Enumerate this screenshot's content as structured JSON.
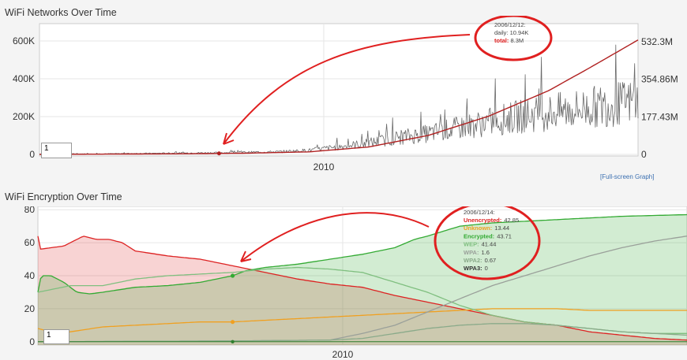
{
  "colors": {
    "network_daily": "#6a6a6a",
    "network_total": "#b02020",
    "unencrypted": "#dd2222",
    "unknown": "#f0a020",
    "encrypted": "#33aa33",
    "wep": "#7fbf7f",
    "wpa": "#9aa09a",
    "wpa2": "#8aaa8a",
    "annotation": "#e02020"
  },
  "chart_data": [
    {
      "type": "line",
      "title": "WiFi Networks Over Time",
      "x_label_center": "2010",
      "left_axis": {
        "ticks": [
          "600K",
          "400K",
          "200K",
          "0"
        ],
        "values": [
          600000,
          400000,
          200000,
          0
        ],
        "ylim": [
          0,
          650000
        ]
      },
      "right_axis": {
        "ticks": [
          "532.3M",
          "354.86M",
          "177.43M",
          "0"
        ],
        "values": [
          532.3,
          354.86,
          177.43,
          0
        ],
        "ylim": [
          0,
          580
        ]
      },
      "series": [
        {
          "name": "daily",
          "axis": "left",
          "anchors": [
            [
              0.0,
              2000
            ],
            [
              0.1,
              3000
            ],
            [
              0.2,
              6000
            ],
            [
              0.3,
              9000
            ],
            [
              0.4,
              14000
            ],
            [
              0.45,
              22000
            ],
            [
              0.5,
              40000
            ],
            [
              0.55,
              60000
            ],
            [
              0.6,
              90000
            ],
            [
              0.65,
              110000
            ],
            [
              0.7,
              140000
            ],
            [
              0.75,
              170000
            ],
            [
              0.8,
              200000
            ],
            [
              0.85,
              220000
            ],
            [
              0.9,
              240000
            ],
            [
              0.95,
              260000
            ],
            [
              1.0,
              280000
            ]
          ]
        },
        {
          "name": "total",
          "axis": "right",
          "anchors": [
            [
              0.0,
              0
            ],
            [
              0.25,
              3
            ],
            [
              0.35,
              6
            ],
            [
              0.45,
              12
            ],
            [
              0.55,
              35
            ],
            [
              0.65,
              90
            ],
            [
              0.75,
              180
            ],
            [
              0.85,
              300
            ],
            [
              0.92,
              410
            ],
            [
              1.0,
              540
            ]
          ]
        }
      ],
      "tooltip": {
        "date": "2006/12/12:",
        "daily_label": "daily:",
        "daily_value": "10.94K",
        "total_label": "total:",
        "total_value": "8.3M"
      },
      "range_input": "1",
      "fullscreen_link": "[Full-screen Graph]"
    },
    {
      "type": "area",
      "title": "WiFi Encryption Over Time",
      "x_label_center": "2010",
      "y_axis": {
        "ticks": [
          "80",
          "60",
          "40",
          "20",
          "0"
        ],
        "values": [
          80,
          60,
          40,
          20,
          0
        ],
        "ylim": [
          -2,
          82
        ]
      },
      "series": [
        {
          "name": "Unencrypted",
          "filled": true,
          "anchors": [
            [
              0.0,
              64
            ],
            [
              0.002,
              56
            ],
            [
              0.04,
              58
            ],
            [
              0.07,
              64
            ],
            [
              0.09,
              62
            ],
            [
              0.11,
              62
            ],
            [
              0.13,
              60
            ],
            [
              0.15,
              55
            ],
            [
              0.2,
              52
            ],
            [
              0.25,
              50
            ],
            [
              0.3,
              46
            ],
            [
              0.35,
              42
            ],
            [
              0.4,
              38
            ],
            [
              0.45,
              35
            ],
            [
              0.5,
              33
            ],
            [
              0.55,
              28
            ],
            [
              0.6,
              24
            ],
            [
              0.65,
              20
            ],
            [
              0.7,
              16
            ],
            [
              0.75,
              12
            ],
            [
              0.8,
              10
            ],
            [
              0.85,
              6
            ],
            [
              0.9,
              4
            ],
            [
              0.95,
              2
            ],
            [
              1.0,
              1
            ]
          ]
        },
        {
          "name": "Encrypted",
          "filled": true,
          "anchors": [
            [
              0.0,
              30
            ],
            [
              0.005,
              40
            ],
            [
              0.02,
              40
            ],
            [
              0.04,
              36
            ],
            [
              0.06,
              30
            ],
            [
              0.08,
              29
            ],
            [
              0.1,
              30
            ],
            [
              0.15,
              33
            ],
            [
              0.2,
              34
            ],
            [
              0.25,
              36
            ],
            [
              0.3,
              40
            ],
            [
              0.32,
              43
            ],
            [
              0.35,
              45
            ],
            [
              0.4,
              47
            ],
            [
              0.45,
              50
            ],
            [
              0.5,
              53
            ],
            [
              0.55,
              57
            ],
            [
              0.58,
              62
            ],
            [
              0.6,
              64
            ],
            [
              0.65,
              70
            ],
            [
              0.7,
              72
            ],
            [
              0.8,
              74
            ],
            [
              0.9,
              76
            ],
            [
              1.0,
              77
            ]
          ]
        },
        {
          "name": "Unknown",
          "filled": false,
          "anchors": [
            [
              0.0,
              8
            ],
            [
              0.03,
              5
            ],
            [
              0.05,
              6
            ],
            [
              0.1,
              9
            ],
            [
              0.15,
              10
            ],
            [
              0.2,
              11
            ],
            [
              0.25,
              12
            ],
            [
              0.3,
              12
            ],
            [
              0.35,
              13
            ],
            [
              0.4,
              14
            ],
            [
              0.45,
              15
            ],
            [
              0.5,
              16
            ],
            [
              0.55,
              17
            ],
            [
              0.6,
              18
            ],
            [
              0.65,
              19
            ],
            [
              0.7,
              20
            ],
            [
              0.75,
              20
            ],
            [
              0.8,
              20
            ],
            [
              0.85,
              19
            ],
            [
              0.9,
              19
            ],
            [
              1.0,
              19
            ]
          ]
        },
        {
          "name": "WEP",
          "filled": false,
          "anchors": [
            [
              0.0,
              30
            ],
            [
              0.05,
              34
            ],
            [
              0.1,
              34
            ],
            [
              0.15,
              38
            ],
            [
              0.2,
              40
            ],
            [
              0.25,
              41
            ],
            [
              0.3,
              42
            ],
            [
              0.35,
              44
            ],
            [
              0.4,
              45
            ],
            [
              0.45,
              44
            ],
            [
              0.5,
              42
            ],
            [
              0.55,
              36
            ],
            [
              0.6,
              30
            ],
            [
              0.65,
              22
            ],
            [
              0.7,
              16
            ],
            [
              0.75,
              12
            ],
            [
              0.8,
              10
            ],
            [
              0.85,
              8
            ],
            [
              0.9,
              6
            ],
            [
              0.95,
              5
            ],
            [
              1.0,
              5
            ]
          ]
        },
        {
          "name": "WPA",
          "filled": false,
          "anchors": [
            [
              0.0,
              0
            ],
            [
              0.3,
              0.5
            ],
            [
              0.45,
              1
            ],
            [
              0.5,
              5
            ],
            [
              0.55,
              10
            ],
            [
              0.6,
              18
            ],
            [
              0.65,
              26
            ],
            [
              0.7,
              34
            ],
            [
              0.75,
              40
            ],
            [
              0.8,
              46
            ],
            [
              0.85,
              52
            ],
            [
              0.9,
              57
            ],
            [
              0.95,
              61
            ],
            [
              1.0,
              64
            ]
          ]
        },
        {
          "name": "WPA2",
          "filled": false,
          "anchors": [
            [
              0.0,
              0
            ],
            [
              0.3,
              0.5
            ],
            [
              0.45,
              1
            ],
            [
              0.5,
              2
            ],
            [
              0.55,
              5
            ],
            [
              0.6,
              8
            ],
            [
              0.65,
              10
            ],
            [
              0.7,
              11
            ],
            [
              0.75,
              11
            ],
            [
              0.8,
              10
            ],
            [
              0.85,
              8
            ],
            [
              0.9,
              6
            ],
            [
              0.95,
              5
            ],
            [
              1.0,
              4
            ]
          ]
        },
        {
          "name": "WPA3",
          "filled": false,
          "anchors": [
            [
              0.0,
              0
            ],
            [
              1.0,
              0
            ]
          ]
        }
      ],
      "tooltip": {
        "date": "2006/12/14:",
        "rows": [
          {
            "label": "Unencrypted:",
            "value": "42.85"
          },
          {
            "label": "Unknown:",
            "value": "13.44"
          },
          {
            "label": "Encrypted:",
            "value": "43.71"
          },
          {
            "label": "WEP:",
            "value": "41.44"
          },
          {
            "label": "WPA:",
            "value": "1.6"
          },
          {
            "label": "WPA2:",
            "value": "0.67"
          },
          {
            "label": "WPA3:",
            "value": "0"
          }
        ]
      },
      "range_input": "1"
    }
  ]
}
